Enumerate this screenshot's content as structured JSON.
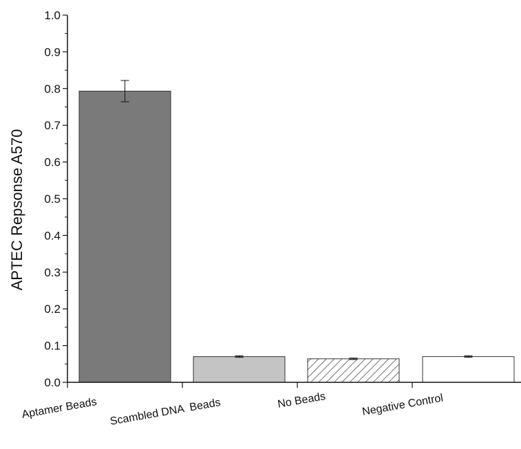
{
  "chart_data": {
    "type": "bar",
    "title": "",
    "xlabel": "",
    "ylabel": "APTEC Repsonse A570",
    "ylim": [
      0,
      1.0
    ],
    "yticks": [
      "0.0",
      "0.1",
      "0.2",
      "0.3",
      "0.4",
      "0.5",
      "0.6",
      "0.7",
      "0.8",
      "0.9",
      "1.0"
    ],
    "categories": [
      "Aptamer Beads",
      "Scambled DNA  Beads",
      "No Beads",
      "Negative Control"
    ],
    "values": [
      0.793,
      0.07,
      0.064,
      0.07
    ],
    "errors": [
      0.029,
      0.002,
      0.002,
      0.002
    ],
    "bar_styles": [
      "dark-gray",
      "light-gray",
      "hatched",
      "white"
    ],
    "colors": {
      "dark_bar": "#7a7a7a",
      "light_bar": "#c4c4c4",
      "hatch": "#444444",
      "white_bar": "#ffffff",
      "axis": "#111111"
    },
    "grid": false,
    "legend": "none"
  }
}
